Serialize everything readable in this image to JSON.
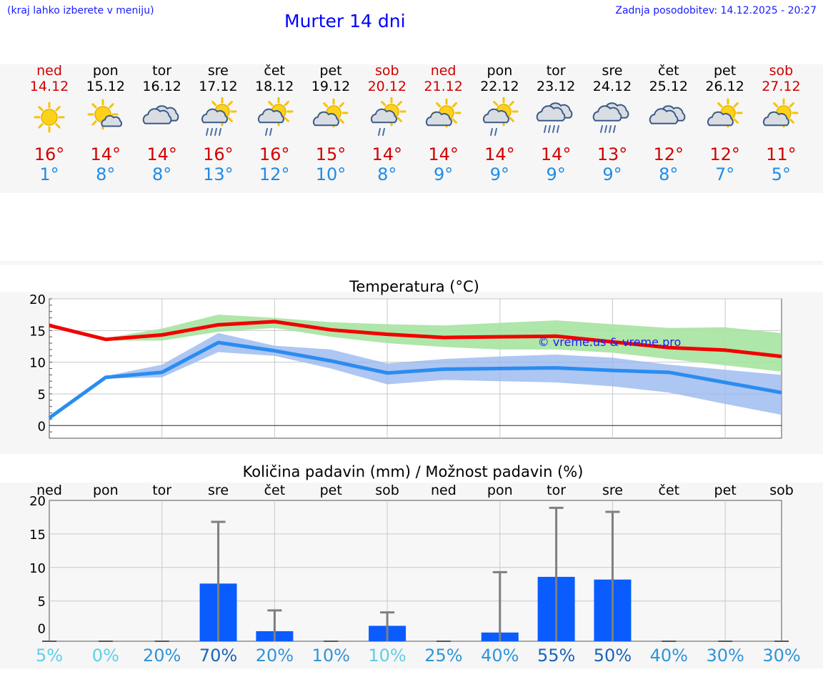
{
  "header": {
    "menu_hint": "(kraj lahko izberete v meniju)",
    "title": "Murter 14 dni",
    "updated": "Zadnja posodobitev: 14.12.2025 - 20:27"
  },
  "days": [
    {
      "name": "ned",
      "date": "14.12",
      "icon": "sun-icon",
      "max": "16°",
      "min": "1°",
      "weekend": true
    },
    {
      "name": "pon",
      "date": "15.12",
      "icon": "sun-small-cloud-icon",
      "max": "14°",
      "min": "8°",
      "weekend": false
    },
    {
      "name": "tor",
      "date": "16.12",
      "icon": "cloudy-icon",
      "max": "14°",
      "min": "8°",
      "weekend": false
    },
    {
      "name": "sre",
      "date": "17.12",
      "icon": "sun-cloud-rain-icon",
      "max": "16°",
      "min": "13°",
      "weekend": false
    },
    {
      "name": "čet",
      "date": "18.12",
      "icon": "sun-cloud-light-rain-icon",
      "max": "16°",
      "min": "12°",
      "weekend": false
    },
    {
      "name": "pet",
      "date": "19.12",
      "icon": "partly-cloudy-icon",
      "max": "15°",
      "min": "10°",
      "weekend": false
    },
    {
      "name": "sob",
      "date": "20.12",
      "icon": "sun-cloud-light-rain-icon",
      "max": "14°",
      "min": "8°",
      "weekend": true
    },
    {
      "name": "ned",
      "date": "21.12",
      "icon": "partly-cloudy-icon",
      "max": "14°",
      "min": "9°",
      "weekend": true
    },
    {
      "name": "pon",
      "date": "22.12",
      "icon": "sun-cloud-light-rain-icon",
      "max": "14°",
      "min": "9°",
      "weekend": false
    },
    {
      "name": "tor",
      "date": "23.12",
      "icon": "cloud-rain-icon",
      "max": "14°",
      "min": "9°",
      "weekend": false
    },
    {
      "name": "sre",
      "date": "24.12",
      "icon": "cloud-rain-icon",
      "max": "13°",
      "min": "9°",
      "weekend": false
    },
    {
      "name": "čet",
      "date": "25.12",
      "icon": "cloudy-icon",
      "max": "12°",
      "min": "8°",
      "weekend": false
    },
    {
      "name": "pet",
      "date": "26.12",
      "icon": "partly-cloudy-icon",
      "max": "12°",
      "min": "7°",
      "weekend": false
    },
    {
      "name": "sob",
      "date": "27.12",
      "icon": "partly-cloudy-icon",
      "max": "11°",
      "min": "5°",
      "weekend": true
    }
  ],
  "colors": {
    "max_line": "#f20000",
    "min_line": "#2a8cf0",
    "max_band": "#a6e3a0",
    "min_band": "#9ab8ef",
    "bar": "#0a5cff",
    "whisker": "#7f7f7f",
    "pct_low": "#5fcfe8",
    "pct_mid": "#2e95d8",
    "pct_high": "#1a64b8"
  },
  "chart_data": [
    {
      "type": "line",
      "title": "Temperatura (°C)",
      "watermark": "© vreme.us & vreme.pro",
      "categories": [
        "ned",
        "pon",
        "tor",
        "sre",
        "čet",
        "pet",
        "sob",
        "ned",
        "pon",
        "tor",
        "sre",
        "čet",
        "pet",
        "sob"
      ],
      "ylim": [
        -2,
        20
      ],
      "yticks": [
        0,
        5,
        10,
        15,
        20
      ],
      "series": [
        {
          "name": "max",
          "values": [
            15.8,
            13.6,
            14.3,
            15.9,
            16.4,
            15.1,
            14.4,
            13.9,
            14.0,
            14.1,
            13.2,
            12.3,
            11.9,
            10.9
          ],
          "band_low": [
            15.8,
            13.4,
            13.4,
            14.8,
            15.4,
            14.0,
            13.0,
            12.4,
            12.0,
            12.0,
            11.5,
            10.5,
            9.5,
            8.5
          ],
          "band_high": [
            15.8,
            13.8,
            15.3,
            17.5,
            17.0,
            16.3,
            16.0,
            15.8,
            16.2,
            16.6,
            16.0,
            15.4,
            15.5,
            14.6
          ]
        },
        {
          "name": "min",
          "values": [
            1.2,
            7.6,
            8.4,
            13.1,
            11.8,
            10.2,
            8.3,
            8.9,
            9.0,
            9.1,
            8.7,
            8.4,
            6.8,
            5.2
          ],
          "band_low": [
            1.2,
            7.4,
            7.6,
            11.6,
            11.0,
            9.0,
            6.5,
            7.2,
            7.0,
            6.8,
            6.2,
            5.2,
            3.4,
            1.7
          ],
          "band_high": [
            1.2,
            7.8,
            9.6,
            14.6,
            12.6,
            12.0,
            9.8,
            10.5,
            10.9,
            11.2,
            10.7,
            9.6,
            8.8,
            8.0
          ]
        }
      ]
    },
    {
      "type": "bar",
      "title": "Količina padavin (mm) / Možnost padavin (%)",
      "categories": [
        "ned",
        "pon",
        "tor",
        "sre",
        "čet",
        "pet",
        "sob",
        "ned",
        "pon",
        "tor",
        "sre",
        "čet",
        "pet",
        "sob"
      ],
      "ylim": [
        -1,
        20
      ],
      "yticks": [
        0,
        5,
        10,
        15,
        20
      ],
      "values": [
        0,
        0,
        0,
        7.6,
        0.5,
        0,
        1.3,
        0,
        0.3,
        8.6,
        8.2,
        0,
        0,
        0
      ],
      "max_values": [
        0,
        0,
        0,
        16.8,
        3.6,
        0,
        3.3,
        0,
        9.3,
        18.9,
        18.3,
        0,
        0,
        0
      ],
      "chance": [
        "5%",
        "0%",
        "20%",
        "70%",
        "20%",
        "10%",
        "10%",
        "25%",
        "40%",
        "55%",
        "50%",
        "40%",
        "30%",
        "30%"
      ],
      "chance_level": [
        "low",
        "low",
        "mid",
        "high",
        "mid",
        "mid",
        "low",
        "mid",
        "mid",
        "high",
        "high",
        "mid",
        "mid",
        "mid"
      ]
    }
  ]
}
